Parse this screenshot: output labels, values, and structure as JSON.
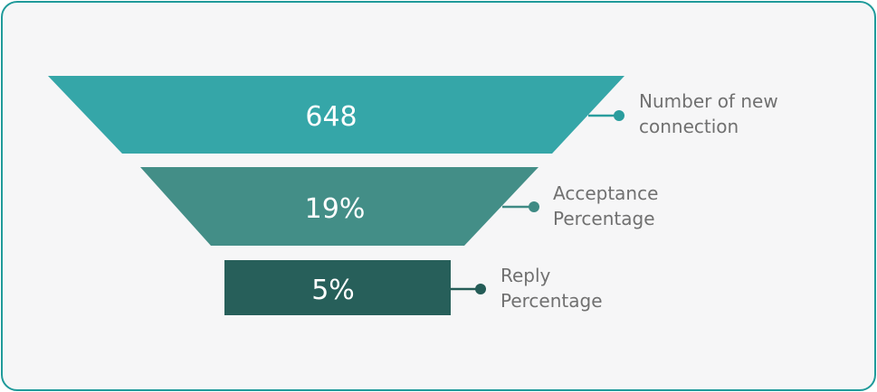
{
  "chart_data": {
    "type": "funnel",
    "stages": [
      {
        "value": "648",
        "label": [
          "Number of new",
          "connection"
        ],
        "color": "#35a6a8"
      },
      {
        "value": "19%",
        "label": [
          "Acceptance",
          "Percentage"
        ],
        "color": "#438e87"
      },
      {
        "value": "5%",
        "label": [
          "Reply",
          "Percentage"
        ],
        "color": "#275f5a"
      }
    ],
    "connector_colors": [
      "#2a9d9e",
      "#3f8a84",
      "#245c57"
    ]
  }
}
